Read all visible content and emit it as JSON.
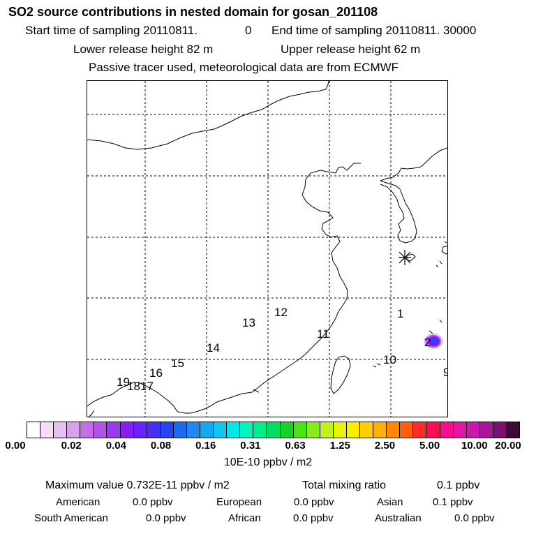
{
  "header": {
    "title": "SO2 source contributions in nested domain for gosan_201108",
    "start_label": "Start time of sampling 20110811.",
    "start_hour": "0",
    "end_label": "End time of sampling 20110811. 30000",
    "lower_release": "Lower release height   82 m",
    "upper_release": "Upper release height   62 m",
    "tracer_note": "Passive tracer used, meteorological data are from ECMWF"
  },
  "map": {
    "region_labels": [
      "1",
      "2",
      "9",
      "10",
      "11",
      "12",
      "13",
      "14",
      "15",
      "16",
      "17",
      "18",
      "19"
    ],
    "receptor_icon": "asterisk-marker"
  },
  "colorbar": {
    "colors": [
      "#ffffff",
      "#f3dff5",
      "#e6c0ee",
      "#d9a2e8",
      "#c46de9",
      "#b452f0",
      "#a037f0",
      "#8a1df6",
      "#6b21ff",
      "#4a2df8",
      "#2a44f2",
      "#1c6bef",
      "#1a8cef",
      "#13a8ef",
      "#0cc7ee",
      "#00e8e9",
      "#00f5ba",
      "#00ee91",
      "#00de62",
      "#13d32a",
      "#46e514",
      "#84ed1a",
      "#bff31c",
      "#e9f20d",
      "#ffec00",
      "#ffce00",
      "#ffaf00",
      "#ff8a00",
      "#ff5e10",
      "#ff2a2a",
      "#ff0e50",
      "#f80e86",
      "#e313a6",
      "#cc16b4",
      "#a9159a",
      "#7d0e74",
      "#3d0a39"
    ],
    "tick_labels": [
      "0.00",
      "0.02",
      "0.04",
      "0.08",
      "0.16",
      "0.31",
      "0.63",
      "1.25",
      "2.50",
      "5.00",
      "10.00",
      "20.00"
    ],
    "unit": "10E-10 ppbv / m2"
  },
  "footer": {
    "max_value": "Maximum value  0.732E-11 ppbv / m2",
    "total_mixing_label": "Total mixing ratio",
    "total_mixing_value": "0.1 ppbv",
    "american_label": "American",
    "american_value": "0.0 ppbv",
    "european_label": "European",
    "european_value": "0.0 ppbv",
    "asian_label": "Asian",
    "asian_value": "0.1 ppbv",
    "south_american_label": "South American",
    "south_american_value": "0.0 ppbv",
    "african_label": "African",
    "african_value": "0.0 ppbv",
    "australian_label": "Australian",
    "australian_value": "0.0 ppbv"
  }
}
